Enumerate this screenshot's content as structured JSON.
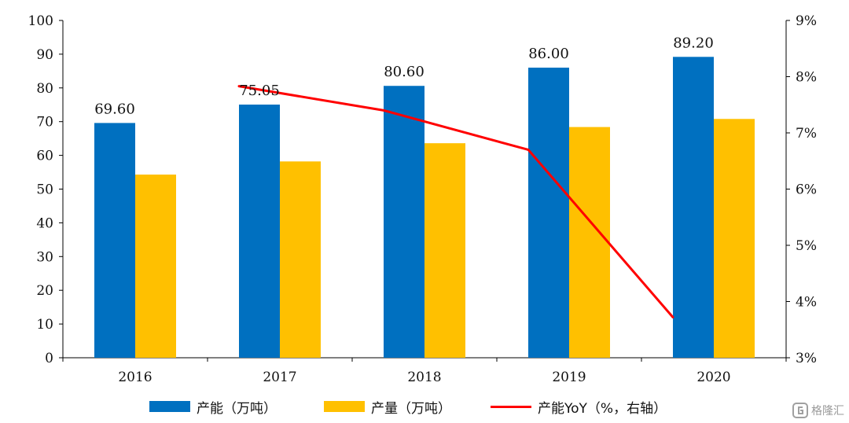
{
  "chart_data": {
    "type": "bar",
    "categories": [
      "2016",
      "2017",
      "2018",
      "2019",
      "2020"
    ],
    "series": [
      {
        "name": "产能（万吨）",
        "type": "bar",
        "axis": "left",
        "color": "#0070C0",
        "values": [
          69.6,
          75.05,
          80.6,
          86.0,
          89.2
        ],
        "labels": [
          "69.60",
          "75.05",
          "80.60",
          "86.00",
          "89.20"
        ]
      },
      {
        "name": "产量（万吨）",
        "type": "bar",
        "axis": "left",
        "color": "#FFC000",
        "values": [
          54.3,
          58.2,
          63.6,
          68.4,
          70.8
        ]
      },
      {
        "name": "产能YoY（%，右轴）",
        "type": "line",
        "axis": "right",
        "color": "#FF0000",
        "x": [
          "2017",
          "2018",
          "2019",
          "2020"
        ],
        "values": [
          7.83,
          7.4,
          6.7,
          3.72
        ]
      }
    ],
    "left_axis": {
      "min": 0,
      "max": 100,
      "step": 10,
      "tick_labels": [
        "0",
        "10",
        "20",
        "30",
        "40",
        "50",
        "60",
        "70",
        "80",
        "90",
        "100"
      ]
    },
    "right_axis": {
      "min": 3,
      "max": 9,
      "step": 1,
      "tick_labels": [
        "3%",
        "4%",
        "5%",
        "6%",
        "7%",
        "8%",
        "9%"
      ]
    },
    "grid": false,
    "legend_position": "bottom"
  },
  "legend": {
    "items": [
      {
        "label": "产能（万吨）",
        "color": "#0070C0",
        "kind": "bar"
      },
      {
        "label": "产量（万吨）",
        "color": "#FFC000",
        "kind": "bar"
      },
      {
        "label": "产能YoY（%，右轴）",
        "color": "#FF0000",
        "kind": "line"
      }
    ]
  },
  "watermark": {
    "text": "格隆汇"
  }
}
